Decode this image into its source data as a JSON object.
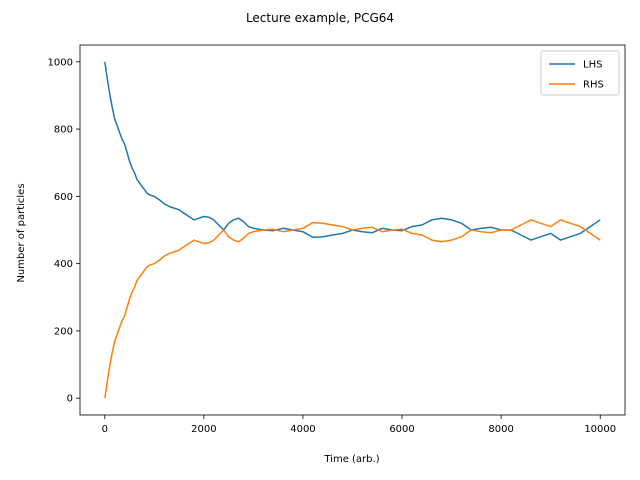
{
  "chart_data": {
    "type": "line",
    "title": "Lecture example, PCG64",
    "xlabel": "Time (arb.)",
    "ylabel": "Number of particles",
    "xlim": [
      -500,
      10500
    ],
    "ylim": [
      -50,
      1050
    ],
    "xticks": [
      0,
      2000,
      4000,
      6000,
      8000,
      10000
    ],
    "xtick_labels": [
      "0",
      "2000",
      "4000",
      "6000",
      "8000",
      "10000"
    ],
    "yticks": [
      0,
      200,
      400,
      600,
      800,
      1000
    ],
    "ytick_labels": [
      "0",
      "200",
      "400",
      "600",
      "800",
      "1000"
    ],
    "grid": false,
    "legend_position": "top-right",
    "series": [
      {
        "name": "LHS",
        "color": "#1f77b4",
        "x": [
          0,
          50,
          100,
          150,
          200,
          250,
          300,
          350,
          400,
          450,
          500,
          550,
          600,
          650,
          700,
          750,
          800,
          850,
          900,
          1000,
          1100,
          1200,
          1300,
          1400,
          1500,
          1600,
          1700,
          1800,
          1900,
          2000,
          2100,
          2200,
          2300,
          2400,
          2500,
          2600,
          2700,
          2800,
          2900,
          3000,
          3200,
          3400,
          3600,
          3800,
          4000,
          4200,
          4400,
          4600,
          4800,
          5000,
          5200,
          5400,
          5600,
          5800,
          6000,
          6200,
          6400,
          6600,
          6800,
          7000,
          7200,
          7400,
          7600,
          7800,
          8000,
          8200,
          8400,
          8600,
          8800,
          9000,
          9200,
          9400,
          9600,
          9800,
          10000
        ],
        "values": [
          1000,
          950,
          905,
          865,
          830,
          810,
          790,
          770,
          755,
          730,
          705,
          685,
          670,
          650,
          640,
          630,
          620,
          610,
          605,
          600,
          590,
          578,
          570,
          565,
          560,
          550,
          540,
          530,
          535,
          540,
          538,
          530,
          515,
          500,
          520,
          530,
          535,
          525,
          510,
          505,
          500,
          498,
          505,
          500,
          495,
          478,
          480,
          485,
          490,
          500,
          495,
          492,
          505,
          500,
          498,
          510,
          515,
          530,
          535,
          530,
          520,
          500,
          505,
          508,
          500,
          500,
          485,
          470,
          480,
          490,
          470,
          480,
          490,
          510,
          530
        ]
      },
      {
        "name": "RHS",
        "color": "#ff7f0e",
        "x": [
          0,
          50,
          100,
          150,
          200,
          250,
          300,
          350,
          400,
          450,
          500,
          550,
          600,
          650,
          700,
          750,
          800,
          850,
          900,
          1000,
          1100,
          1200,
          1300,
          1400,
          1500,
          1600,
          1700,
          1800,
          1900,
          2000,
          2100,
          2200,
          2300,
          2400,
          2500,
          2600,
          2700,
          2800,
          2900,
          3000,
          3200,
          3400,
          3600,
          3800,
          4000,
          4200,
          4400,
          4600,
          4800,
          5000,
          5200,
          5400,
          5600,
          5800,
          6000,
          6200,
          6400,
          6600,
          6800,
          7000,
          7200,
          7400,
          7600,
          7800,
          8000,
          8200,
          8400,
          8600,
          8800,
          9000,
          9200,
          9400,
          9600,
          9800,
          10000
        ],
        "values": [
          0,
          50,
          95,
          135,
          170,
          190,
          210,
          230,
          245,
          270,
          295,
          315,
          330,
          350,
          360,
          370,
          380,
          390,
          395,
          400,
          410,
          422,
          430,
          435,
          440,
          450,
          460,
          470,
          465,
          460,
          462,
          470,
          485,
          500,
          480,
          470,
          465,
          475,
          490,
          495,
          500,
          502,
          495,
          500,
          505,
          522,
          520,
          515,
          510,
          500,
          505,
          508,
          495,
          500,
          502,
          490,
          485,
          470,
          465,
          470,
          480,
          500,
          495,
          492,
          500,
          500,
          515,
          530,
          520,
          510,
          530,
          520,
          510,
          490,
          470
        ]
      }
    ]
  }
}
